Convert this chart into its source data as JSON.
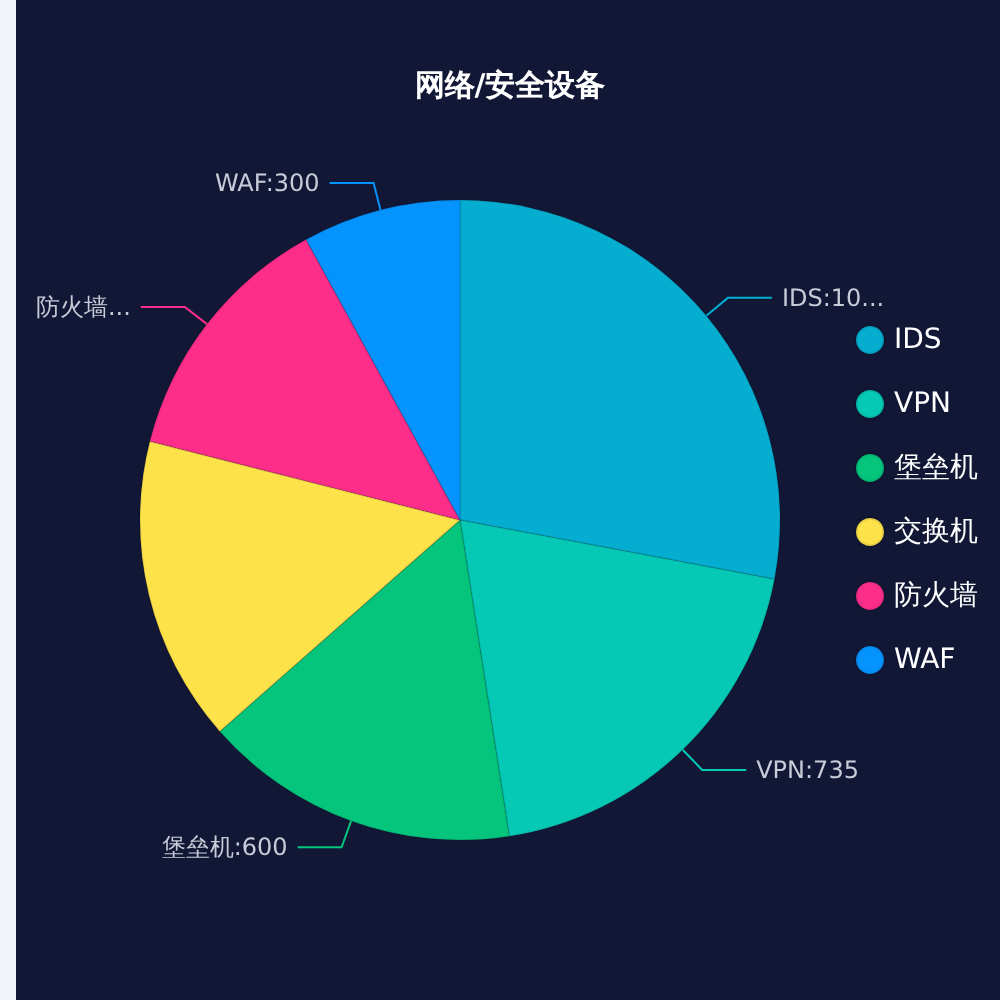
{
  "chart_data": {
    "type": "pie",
    "title": "网络/安全设备",
    "categories": [
      "IDS",
      "VPN",
      "堡垒机",
      "交换机",
      "防火墙",
      "WAF"
    ],
    "values": [
      1050,
      735,
      600,
      580,
      490,
      300
    ],
    "colors": [
      "#05aed0",
      "#06c9b5",
      "#05c47c",
      "#fde24a",
      "#fd2e8a",
      "#0593fd"
    ],
    "value_labels": [
      "IDS:10...",
      "VPN:735",
      "堡垒机:600",
      null,
      "防火墙...",
      "WAF:300"
    ],
    "legend": "right"
  }
}
